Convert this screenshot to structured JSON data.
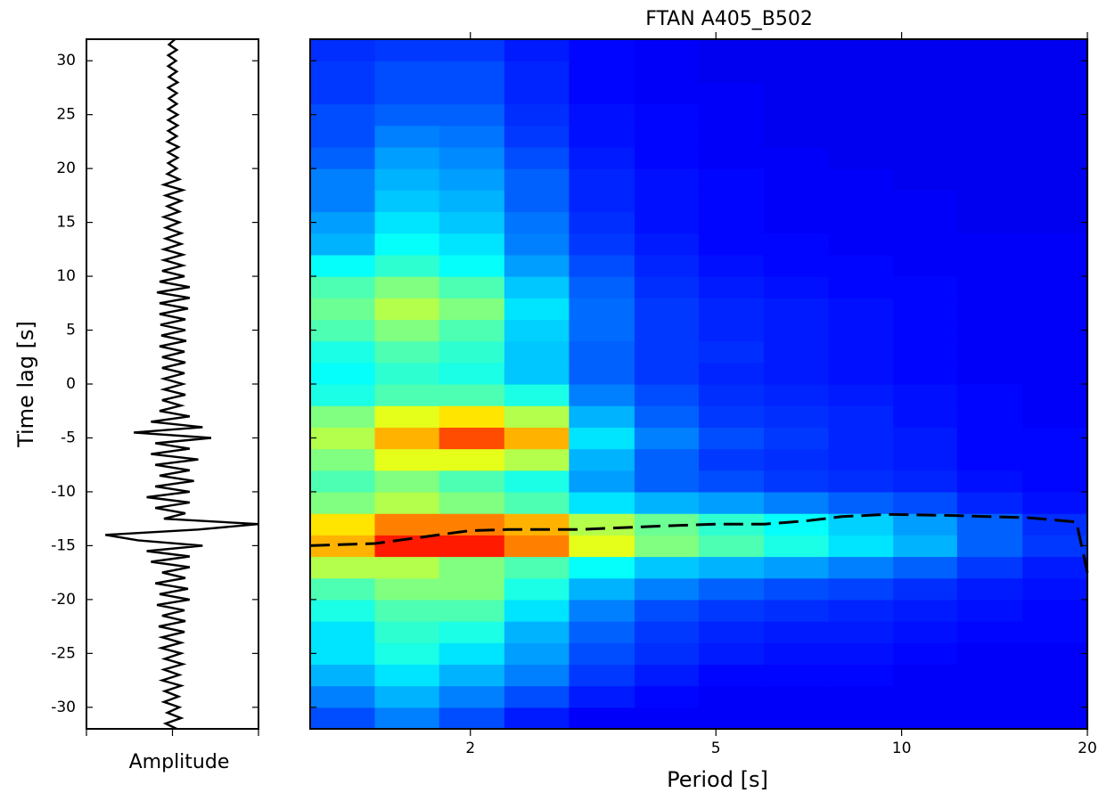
{
  "chart_data": [
    {
      "type": "waveform",
      "xlabel": "Amplitude",
      "ylabel": "Time lag [s]",
      "color": "#000000",
      "xlim": [
        -1,
        1
      ],
      "xticks": [
        -1,
        0,
        1
      ],
      "ylim": [
        -32,
        32
      ],
      "yticks": [
        -30,
        -25,
        -20,
        -15,
        -10,
        -5,
        0,
        5,
        10,
        15,
        20,
        25,
        30
      ],
      "time": [
        -32,
        -31.5,
        -31,
        -30.5,
        -30,
        -29.5,
        -29,
        -28.5,
        -28,
        -27.5,
        -27,
        -26.5,
        -26,
        -25.5,
        -25,
        -24.5,
        -24,
        -23.5,
        -23,
        -22.5,
        -22,
        -21.5,
        -21,
        -20.5,
        -20,
        -19.5,
        -19,
        -18.5,
        -18,
        -17.5,
        -17,
        -16.5,
        -16,
        -15.5,
        -15,
        -14.5,
        -14,
        -13.5,
        -13,
        -12.5,
        -12,
        -11.5,
        -11,
        -10.5,
        -10,
        -9.5,
        -9,
        -8.5,
        -8,
        -7.5,
        -7,
        -6.5,
        -6,
        -5.5,
        -5,
        -4.5,
        -4,
        -3.5,
        -3,
        -2.5,
        -2,
        -1.5,
        -1,
        -0.5,
        0,
        0.5,
        1,
        1.5,
        2,
        2.5,
        3,
        3.5,
        4,
        4.5,
        5,
        5.5,
        6,
        6.5,
        7,
        7.5,
        8,
        8.5,
        9,
        9.5,
        10,
        10.5,
        11,
        11.5,
        12,
        12.5,
        13,
        13.5,
        14,
        14.5,
        15,
        15.5,
        16,
        16.5,
        17,
        17.5,
        18,
        18.5,
        19,
        19.5,
        20,
        20.5,
        21,
        21.5,
        22,
        22.5,
        23,
        23.5,
        24,
        24.5,
        25,
        25.5,
        26,
        26.5,
        27,
        27.5,
        28,
        28.5,
        29,
        29.5,
        30,
        30.5,
        31,
        31.5,
        32
      ],
      "values": [
        0.05,
        -0.08,
        0.1,
        -0.06,
        0.08,
        -0.1,
        0.07,
        -0.09,
        0.1,
        -0.12,
        0.08,
        -0.1,
        0.12,
        -0.09,
        0.1,
        -0.13,
        0.1,
        -0.12,
        0.14,
        -0.16,
        0.15,
        -0.12,
        0.14,
        -0.18,
        0.2,
        -0.15,
        0.18,
        -0.2,
        0.15,
        -0.12,
        0.2,
        -0.25,
        0.2,
        -0.3,
        0.35,
        -0.4,
        -0.78,
        0.3,
        1.0,
        -0.1,
        0.15,
        -0.2,
        0.2,
        -0.3,
        0.2,
        -0.2,
        0.25,
        -0.15,
        0.2,
        -0.2,
        0.3,
        -0.25,
        0.2,
        -0.2,
        0.45,
        -0.45,
        0.35,
        -0.25,
        0.2,
        -0.15,
        0.1,
        -0.12,
        0.15,
        -0.1,
        0.12,
        -0.1,
        0.14,
        -0.12,
        0.15,
        -0.12,
        0.14,
        -0.15,
        0.16,
        -0.13,
        0.15,
        -0.14,
        0.15,
        -0.15,
        0.18,
        -0.15,
        0.2,
        -0.18,
        0.2,
        -0.15,
        0.14,
        -0.12,
        0.12,
        -0.1,
        0.12,
        -0.1,
        0.1,
        -0.08,
        0.1,
        -0.08,
        0.08,
        -0.1,
        0.08,
        -0.06,
        0.1,
        -0.08,
        0.12,
        -0.1,
        0.08,
        -0.06,
        0.05,
        -0.05,
        0.06,
        -0.05,
        0.07,
        -0.06,
        0.05,
        -0.05,
        0.06,
        -0.05,
        0.06,
        -0.05,
        0.05,
        -0.04,
        0.05,
        -0.05,
        0.06,
        -0.04,
        0.05,
        -0.05,
        0.04,
        -0.05,
        0.05,
        -0.04,
        0.03
      ]
    },
    {
      "type": "heatmap",
      "title": "FTAN A405_B502",
      "xlabel": "Period [s]",
      "xscale": "log",
      "colormap": "jet",
      "xlim": [
        1.1,
        20
      ],
      "xticks": [
        2,
        5,
        10,
        20
      ],
      "ylim": [
        -32,
        32
      ],
      "yticks": [
        -30,
        -25,
        -20,
        -15,
        -10,
        -5,
        0,
        5,
        10,
        15,
        20,
        25,
        30
      ],
      "period_bins": [
        1.1,
        1.4,
        1.78,
        2.27,
        2.89,
        3.69,
        4.69,
        5.98,
        7.61,
        9.69,
        12.3,
        15.7,
        20
      ],
      "time_bins": [
        -32,
        -30,
        -28,
        -26,
        -24,
        -22,
        -20,
        -18,
        -16,
        -14,
        -12,
        -10,
        -8,
        -6,
        -4,
        -2,
        0,
        2,
        4,
        6,
        8,
        10,
        12,
        14,
        16,
        18,
        20,
        22,
        24,
        26,
        28,
        30,
        32
      ],
      "z": [
        [
          0.2,
          0.25,
          0.2,
          0.15,
          0.12,
          0.12,
          0.12,
          0.12,
          0.12,
          0.12,
          0.12,
          0.12
        ],
        [
          0.25,
          0.3,
          0.25,
          0.2,
          0.15,
          0.13,
          0.12,
          0.12,
          0.12,
          0.12,
          0.12,
          0.12
        ],
        [
          0.3,
          0.35,
          0.3,
          0.25,
          0.18,
          0.15,
          0.13,
          0.13,
          0.13,
          0.12,
          0.12,
          0.12
        ],
        [
          0.35,
          0.4,
          0.35,
          0.28,
          0.2,
          0.17,
          0.15,
          0.14,
          0.14,
          0.13,
          0.12,
          0.12
        ],
        [
          0.35,
          0.42,
          0.4,
          0.3,
          0.22,
          0.18,
          0.16,
          0.15,
          0.15,
          0.14,
          0.13,
          0.13
        ],
        [
          0.4,
          0.45,
          0.45,
          0.35,
          0.25,
          0.2,
          0.18,
          0.17,
          0.16,
          0.15,
          0.14,
          0.13
        ],
        [
          0.45,
          0.5,
          0.5,
          0.4,
          0.3,
          0.25,
          0.22,
          0.2,
          0.19,
          0.17,
          0.15,
          0.14
        ],
        [
          0.55,
          0.55,
          0.5,
          0.45,
          0.38,
          0.32,
          0.3,
          0.28,
          0.25,
          0.22,
          0.18,
          0.15
        ],
        [
          0.7,
          0.85,
          0.85,
          0.75,
          0.6,
          0.5,
          0.45,
          0.4,
          0.35,
          0.3,
          0.22,
          0.18
        ],
        [
          0.65,
          0.75,
          0.75,
          0.7,
          0.55,
          0.48,
          0.42,
          0.38,
          0.33,
          0.28,
          0.22,
          0.17
        ],
        [
          0.5,
          0.55,
          0.5,
          0.45,
          0.35,
          0.3,
          0.28,
          0.25,
          0.22,
          0.2,
          0.16,
          0.14
        ],
        [
          0.45,
          0.5,
          0.45,
          0.4,
          0.28,
          0.22,
          0.2,
          0.18,
          0.17,
          0.16,
          0.14,
          0.13
        ],
        [
          0.5,
          0.6,
          0.6,
          0.55,
          0.3,
          0.22,
          0.18,
          0.17,
          0.16,
          0.15,
          0.13,
          0.13
        ],
        [
          0.55,
          0.7,
          0.8,
          0.7,
          0.35,
          0.25,
          0.2,
          0.18,
          0.16,
          0.15,
          0.13,
          0.13
        ],
        [
          0.5,
          0.6,
          0.65,
          0.55,
          0.3,
          0.22,
          0.18,
          0.17,
          0.16,
          0.14,
          0.13,
          0.12
        ],
        [
          0.4,
          0.45,
          0.45,
          0.4,
          0.25,
          0.2,
          0.17,
          0.16,
          0.15,
          0.14,
          0.13,
          0.12
        ],
        [
          0.38,
          0.42,
          0.4,
          0.32,
          0.22,
          0.18,
          0.16,
          0.15,
          0.14,
          0.13,
          0.12,
          0.12
        ],
        [
          0.4,
          0.45,
          0.42,
          0.32,
          0.22,
          0.18,
          0.17,
          0.15,
          0.14,
          0.13,
          0.12,
          0.12
        ],
        [
          0.45,
          0.5,
          0.45,
          0.33,
          0.23,
          0.18,
          0.16,
          0.15,
          0.14,
          0.13,
          0.12,
          0.12
        ],
        [
          0.48,
          0.55,
          0.5,
          0.35,
          0.23,
          0.18,
          0.16,
          0.15,
          0.14,
          0.13,
          0.12,
          0.12
        ],
        [
          0.45,
          0.5,
          0.45,
          0.32,
          0.22,
          0.17,
          0.15,
          0.14,
          0.13,
          0.13,
          0.12,
          0.12
        ],
        [
          0.38,
          0.42,
          0.38,
          0.28,
          0.2,
          0.16,
          0.14,
          0.13,
          0.13,
          0.12,
          0.12,
          0.12
        ],
        [
          0.3,
          0.38,
          0.35,
          0.25,
          0.18,
          0.15,
          0.13,
          0.13,
          0.12,
          0.12,
          0.12,
          0.12
        ],
        [
          0.28,
          0.35,
          0.32,
          0.24,
          0.17,
          0.14,
          0.13,
          0.12,
          0.12,
          0.12,
          0.11,
          0.11
        ],
        [
          0.25,
          0.32,
          0.3,
          0.22,
          0.16,
          0.14,
          0.13,
          0.12,
          0.12,
          0.12,
          0.11,
          0.11
        ],
        [
          0.25,
          0.3,
          0.28,
          0.22,
          0.16,
          0.14,
          0.13,
          0.12,
          0.12,
          0.11,
          0.11,
          0.11
        ],
        [
          0.22,
          0.28,
          0.26,
          0.2,
          0.15,
          0.13,
          0.12,
          0.12,
          0.11,
          0.11,
          0.11,
          0.11
        ],
        [
          0.2,
          0.25,
          0.24,
          0.18,
          0.14,
          0.13,
          0.12,
          0.11,
          0.11,
          0.11,
          0.11,
          0.11
        ],
        [
          0.2,
          0.22,
          0.22,
          0.17,
          0.14,
          0.13,
          0.12,
          0.11,
          0.11,
          0.11,
          0.11,
          0.11
        ],
        [
          0.18,
          0.2,
          0.2,
          0.16,
          0.13,
          0.12,
          0.12,
          0.11,
          0.11,
          0.11,
          0.11,
          0.11
        ],
        [
          0.18,
          0.2,
          0.2,
          0.16,
          0.13,
          0.12,
          0.11,
          0.11,
          0.11,
          0.11,
          0.11,
          0.11
        ],
        [
          0.17,
          0.18,
          0.18,
          0.15,
          0.13,
          0.12,
          0.11,
          0.11,
          0.11,
          0.11,
          0.11,
          0.11
        ]
      ],
      "curve": {
        "color": "#000000",
        "dashed": true,
        "periods": [
          1.1,
          1.4,
          2,
          2.3,
          3,
          4,
          5,
          6,
          7,
          8,
          9.5,
          12,
          16,
          19.2,
          20
        ],
        "times": [
          -15,
          -14.8,
          -13.6,
          -13.5,
          -13.5,
          -13.2,
          -13,
          -13,
          -12.7,
          -12.3,
          -12.1,
          -12.2,
          -12.4,
          -12.8,
          -17.5
        ]
      }
    }
  ]
}
